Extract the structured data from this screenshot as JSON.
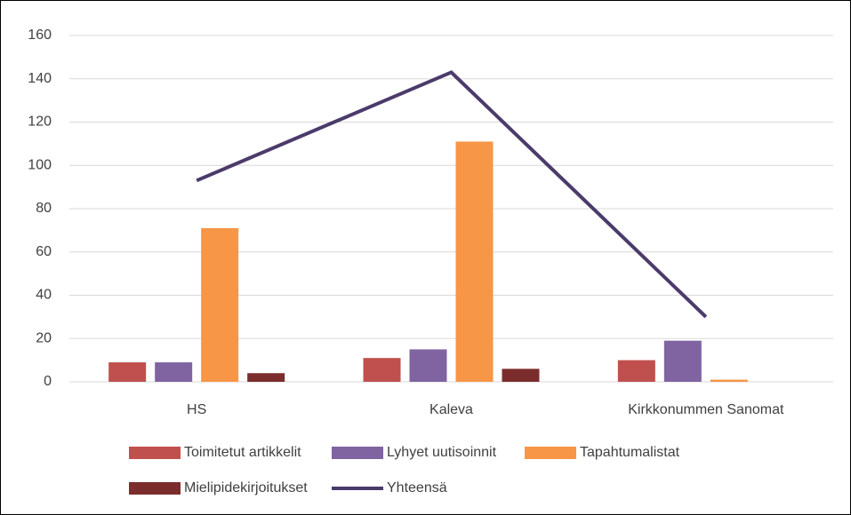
{
  "chart_data": {
    "type": "bar",
    "categories": [
      "HS",
      "Kaleva",
      "Kirkkonummen Sanomat"
    ],
    "series": [
      {
        "name": "Toimitetut artikkelit",
        "color": "#c0504d",
        "values": [
          9,
          11,
          10
        ]
      },
      {
        "name": "Lyhyet uutisoinnit",
        "color": "#8064a2",
        "values": [
          9,
          15,
          19
        ]
      },
      {
        "name": "Tapahtumalistat",
        "color": "#f79646",
        "values": [
          71,
          111,
          1
        ]
      },
      {
        "name": "Mielipidekirjoitukset",
        "color": "#7b2c2c",
        "values": [
          4,
          6,
          0
        ]
      },
      {
        "name": "Yhteensä",
        "color": "#4b3b6b",
        "type": "line",
        "values": [
          93,
          143,
          30
        ]
      }
    ],
    "ylim": [
      0,
      160
    ],
    "yticks": [
      0,
      20,
      40,
      60,
      80,
      100,
      120,
      140,
      160
    ],
    "grid": true
  }
}
